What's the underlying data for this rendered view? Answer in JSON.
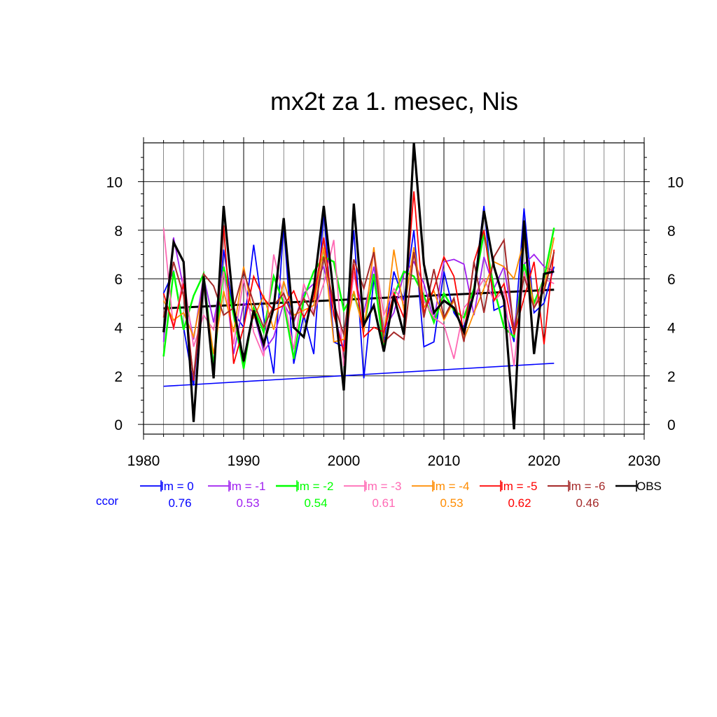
{
  "chart_data": {
    "type": "line",
    "title": "mx2t za 1. mesec, Nis",
    "xlabel": "",
    "ylabel": "",
    "xlim": [
      1980,
      2030
    ],
    "ylim": [
      -0.4,
      11.6
    ],
    "x_ticks": [
      1980,
      1990,
      2000,
      2010,
      2020,
      2030
    ],
    "y_ticks": [
      0,
      2,
      4,
      6,
      8,
      10
    ],
    "grid": true,
    "legend_position": "bottom",
    "ccor_label": "ccor",
    "x": [
      1982,
      1983,
      1984,
      1985,
      1986,
      1987,
      1988,
      1989,
      1990,
      1991,
      1992,
      1993,
      1994,
      1995,
      1996,
      1997,
      1998,
      1999,
      2000,
      2001,
      2002,
      2003,
      2004,
      2005,
      2006,
      2007,
      2008,
      2009,
      2010,
      2011,
      2012,
      2013,
      2014,
      2015,
      2016,
      2017,
      2018,
      2019,
      2020,
      2021
    ],
    "series": [
      {
        "name": "lm = 0",
        "color": "#0000ff",
        "ccor": "0.76",
        "width": 1.8,
        "values": [
          5.4,
          6.3,
          4.0,
          1.6,
          6.1,
          2.2,
          7.2,
          4.6,
          4.0,
          7.4,
          4.4,
          2.1,
          8.2,
          2.5,
          4.5,
          2.9,
          8.8,
          3.4,
          3.2,
          8.0,
          1.9,
          6.0,
          3.4,
          6.3,
          5.1,
          8.0,
          3.2,
          3.4,
          6.3,
          4.6,
          4.0,
          5.6,
          9.0,
          4.7,
          4.9,
          3.4,
          8.9,
          4.6,
          5.0,
          6.5
        ]
      },
      {
        "name": "lm = -1",
        "color": "#a020f0",
        "ccor": "0.53",
        "width": 1.8,
        "values": [
          3.4,
          7.7,
          5.6,
          3.5,
          6.1,
          4.2,
          6.5,
          2.9,
          5.0,
          4.6,
          3.0,
          3.6,
          5.0,
          4.2,
          5.4,
          5.8,
          6.5,
          4.6,
          3.1,
          6.2,
          4.6,
          6.5,
          3.9,
          4.6,
          6.2,
          6.7,
          5.8,
          4.3,
          6.7,
          6.8,
          6.6,
          4.5,
          6.9,
          5.6,
          6.5,
          4.0,
          6.6,
          7.0,
          6.5,
          6.3
        ]
      },
      {
        "name": "lm = -2",
        "color": "#00ff00",
        "ccor": "0.54",
        "width": 2.5,
        "values": [
          2.8,
          6.3,
          3.9,
          5.3,
          6.2,
          2.4,
          6.5,
          4.5,
          2.3,
          4.8,
          3.8,
          6.1,
          5.0,
          2.7,
          5.2,
          6.3,
          6.9,
          6.7,
          4.7,
          5.4,
          4.0,
          6.2,
          3.1,
          5.3,
          6.3,
          6.1,
          5.3,
          4.2,
          5.4,
          4.7,
          4.4,
          5.6,
          7.9,
          5.6,
          4.0,
          3.6,
          6.6,
          5.0,
          6.0,
          8.1
        ]
      },
      {
        "name": "lm = -3",
        "color": "#ff69b4",
        "ccor": "0.61",
        "width": 1.8,
        "values": [
          8.1,
          3.9,
          6.1,
          3.2,
          4.5,
          3.9,
          6.3,
          3.3,
          6.0,
          3.8,
          2.8,
          7.0,
          5.2,
          3.1,
          5.8,
          4.6,
          5.8,
          7.6,
          2.4,
          6.3,
          3.8,
          7.2,
          4.5,
          5.6,
          5.0,
          7.0,
          5.1,
          4.4,
          4.1,
          2.7,
          4.8,
          5.3,
          6.0,
          5.1,
          5.5,
          2.4,
          6.3,
          4.8,
          6.0,
          5.8
        ]
      },
      {
        "name": "lm = -4",
        "color": "#ff8c00",
        "ccor": "0.53",
        "width": 1.8,
        "values": [
          5.1,
          4.3,
          4.6,
          3.6,
          5.7,
          2.9,
          5.5,
          3.8,
          6.5,
          4.4,
          5.3,
          3.9,
          5.9,
          4.5,
          4.7,
          4.9,
          7.3,
          3.4,
          3.5,
          5.5,
          3.8,
          7.3,
          3.6,
          7.2,
          4.7,
          7.3,
          4.8,
          5.5,
          4.3,
          5.1,
          3.5,
          4.6,
          5.6,
          6.7,
          6.5,
          6.0,
          7.6,
          4.8,
          5.6,
          7.7
        ]
      },
      {
        "name": "lm = -5",
        "color": "#ff0000",
        "ccor": "0.62",
        "width": 1.8,
        "values": [
          5.4,
          4.0,
          5.8,
          1.8,
          6.0,
          2.0,
          8.2,
          2.5,
          4.0,
          6.1,
          5.2,
          4.7,
          4.9,
          5.5,
          4.4,
          5.2,
          7.7,
          4.5,
          3.0,
          6.6,
          3.6,
          4.0,
          3.8,
          5.4,
          4.4,
          9.6,
          4.6,
          5.6,
          6.9,
          6.1,
          3.7,
          6.7,
          8.0,
          5.1,
          5.8,
          3.7,
          5.2,
          6.7,
          3.3,
          7.2
        ]
      },
      {
        "name": "lm = -6",
        "color": "#a52a2a",
        "ccor": "0.46",
        "width": 2.0,
        "values": [
          4.4,
          6.7,
          5.3,
          1.9,
          6.2,
          5.7,
          4.5,
          4.8,
          6.3,
          5.0,
          4.0,
          4.9,
          5.4,
          4.3,
          5.2,
          4.5,
          6.9,
          5.0,
          3.7,
          6.8,
          5.6,
          7.1,
          3.4,
          3.8,
          3.5,
          7.1,
          4.4,
          6.4,
          4.4,
          5.2,
          3.4,
          6.7,
          4.6,
          6.9,
          7.6,
          3.8,
          6.1,
          4.8,
          5.5,
          7.1
        ]
      },
      {
        "name": "OBS",
        "color": "#000000",
        "ccor": "",
        "width": 3.2,
        "values": [
          3.8,
          7.5,
          6.7,
          0.1,
          6.1,
          1.9,
          9.0,
          4.8,
          2.6,
          4.7,
          3.3,
          4.8,
          8.5,
          4.0,
          3.6,
          5.6,
          9.0,
          5.3,
          1.4,
          9.1,
          4.1,
          4.9,
          3.0,
          5.3,
          3.7,
          11.6,
          6.6,
          4.6,
          5.1,
          4.8,
          3.8,
          5.4,
          8.8,
          6.5,
          5.1,
          -0.2,
          8.4,
          2.9,
          6.2,
          6.3
        ]
      }
    ],
    "trend_lines": [
      {
        "name": "lm = 0 trend",
        "color": "#0000ff",
        "x": [
          1982,
          2021
        ],
        "values": [
          1.57,
          2.52
        ]
      },
      {
        "name": "OBS trend",
        "color": "#000000",
        "x": [
          1982,
          2021
        ],
        "values": [
          4.78,
          5.55
        ]
      }
    ]
  }
}
